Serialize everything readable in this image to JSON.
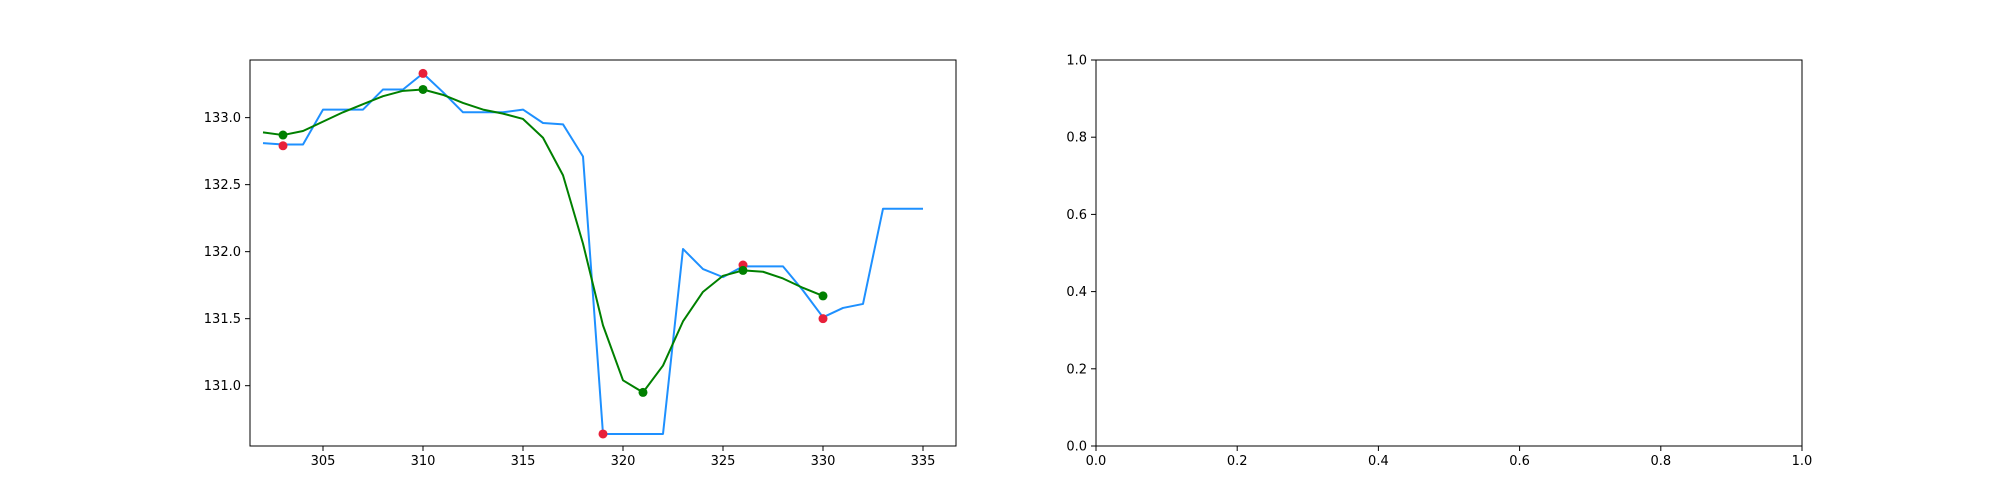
{
  "chart_data": [
    {
      "type": "line",
      "xlim": [
        301.35,
        336.65
      ],
      "ylim": [
        130.55,
        133.43
      ],
      "xticks": [
        305,
        310,
        315,
        320,
        325,
        330,
        335
      ],
      "xtick_labels": [
        "305",
        "310",
        "315",
        "320",
        "325",
        "330",
        "335"
      ],
      "yticks": [
        131.0,
        131.5,
        132.0,
        132.5,
        133.0
      ],
      "ytick_labels": [
        "131.0",
        "131.5",
        "132.0",
        "132.5",
        "133.0"
      ],
      "grid": false,
      "series": [
        {
          "kind": "line",
          "color": "#1e90ff",
          "x": [
            302,
            303,
            304,
            305,
            306,
            307,
            308,
            309,
            310,
            311,
            312,
            313,
            314,
            315,
            316,
            317,
            318,
            319,
            320,
            321,
            322,
            323,
            324,
            325,
            326,
            327,
            328,
            329,
            330,
            331,
            332,
            333,
            334,
            335
          ],
          "y": [
            132.81,
            132.8,
            132.8,
            133.06,
            133.06,
            133.06,
            133.21,
            133.21,
            133.33,
            133.19,
            133.04,
            133.04,
            133.04,
            133.06,
            132.96,
            132.95,
            132.71,
            130.64,
            130.64,
            130.64,
            130.64,
            132.02,
            131.87,
            131.81,
            131.89,
            131.89,
            131.89,
            131.71,
            131.51,
            131.58,
            131.61,
            132.32,
            132.32,
            132.32
          ]
        },
        {
          "kind": "line",
          "color": "#008000",
          "x": [
            302,
            303,
            304,
            305,
            306,
            307,
            308,
            309,
            310,
            311,
            312,
            313,
            314,
            315,
            316,
            317,
            318,
            319,
            320,
            321,
            322,
            323,
            324,
            325,
            326,
            327,
            328,
            329,
            330
          ],
          "y": [
            132.89,
            132.87,
            132.9,
            132.97,
            133.04,
            133.1,
            133.16,
            133.2,
            133.21,
            133.17,
            133.11,
            133.06,
            133.03,
            132.99,
            132.85,
            132.57,
            132.06,
            131.45,
            131.04,
            130.95,
            131.15,
            131.48,
            131.7,
            131.82,
            131.86,
            131.85,
            131.8,
            131.73,
            131.67
          ]
        },
        {
          "kind": "scatter",
          "color": "#e8203a",
          "x": [
            303,
            310,
            319,
            326,
            330
          ],
          "y": [
            132.79,
            133.33,
            130.64,
            131.9,
            131.5
          ]
        },
        {
          "kind": "scatter",
          "color": "#008000",
          "x": [
            303,
            310,
            321,
            326,
            330
          ],
          "y": [
            132.87,
            133.21,
            130.95,
            131.86,
            131.67
          ]
        }
      ]
    },
    {
      "type": "line",
      "xlim": [
        0.0,
        1.0
      ],
      "ylim": [
        0.0,
        1.0
      ],
      "xticks": [
        0.0,
        0.2,
        0.4,
        0.6,
        0.8,
        1.0
      ],
      "xtick_labels": [
        "0.0",
        "0.2",
        "0.4",
        "0.6",
        "0.8",
        "1.0"
      ],
      "yticks": [
        0.0,
        0.2,
        0.4,
        0.6,
        0.8,
        1.0
      ],
      "ytick_labels": [
        "0.0",
        "0.2",
        "0.4",
        "0.6",
        "0.8",
        "1.0"
      ],
      "grid": false,
      "series": []
    }
  ]
}
